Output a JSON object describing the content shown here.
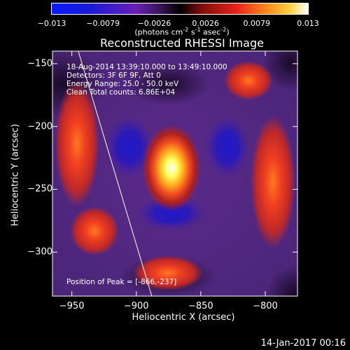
{
  "colorbar": {
    "ticks": [
      "-0.013",
      "-0.0079",
      "-0.0026",
      "0.0026",
      "0.0079",
      "0.013"
    ],
    "units_main": "(photons cm",
    "units_exp1": "-2",
    "units_mid1": " s",
    "units_exp2": "-1",
    "units_mid2": " asec",
    "units_exp3": "-2",
    "units_end": ")",
    "min": -0.013,
    "max": 0.013
  },
  "info": {
    "time": "18-Aug-2014 13:39:10.000 to 13:49:10.000",
    "detectors": "Detectors: 3F 6F 9F, Att 0",
    "energy": "Energy Range: 25.0 - 50.0 keV",
    "clean": "Clean    Total counts: 6.86E+04",
    "peak": "Position of Peak = [-866,-237]"
  },
  "footer": {
    "timestamp": "14-Jan-2017 00:16"
  },
  "chart_data": {
    "type": "heatmap",
    "title": "Reconstructed RHESSI Image",
    "xlabel": "Heliocentric X (arcsec)",
    "ylabel": "Heliocentric Y (arcsec)",
    "xlim": [
      -965,
      -775
    ],
    "ylim": [
      -335,
      -140
    ],
    "xticks": [
      -950,
      -900,
      -850,
      -800
    ],
    "xtick_labels": [
      "−950",
      "−900",
      "−850",
      "−800"
    ],
    "yticks": [
      -150,
      -200,
      -250,
      -300
    ],
    "ytick_labels": [
      "−150",
      "−200",
      "−250",
      "−300"
    ],
    "peak": [
      -866,
      -237
    ],
    "colorscale": "red-temperature (negative: blue/purple, positive: red/yellow/white)",
    "limb_line": [
      [
        -945,
        -140
      ],
      [
        -888,
        -335
      ]
    ]
  }
}
